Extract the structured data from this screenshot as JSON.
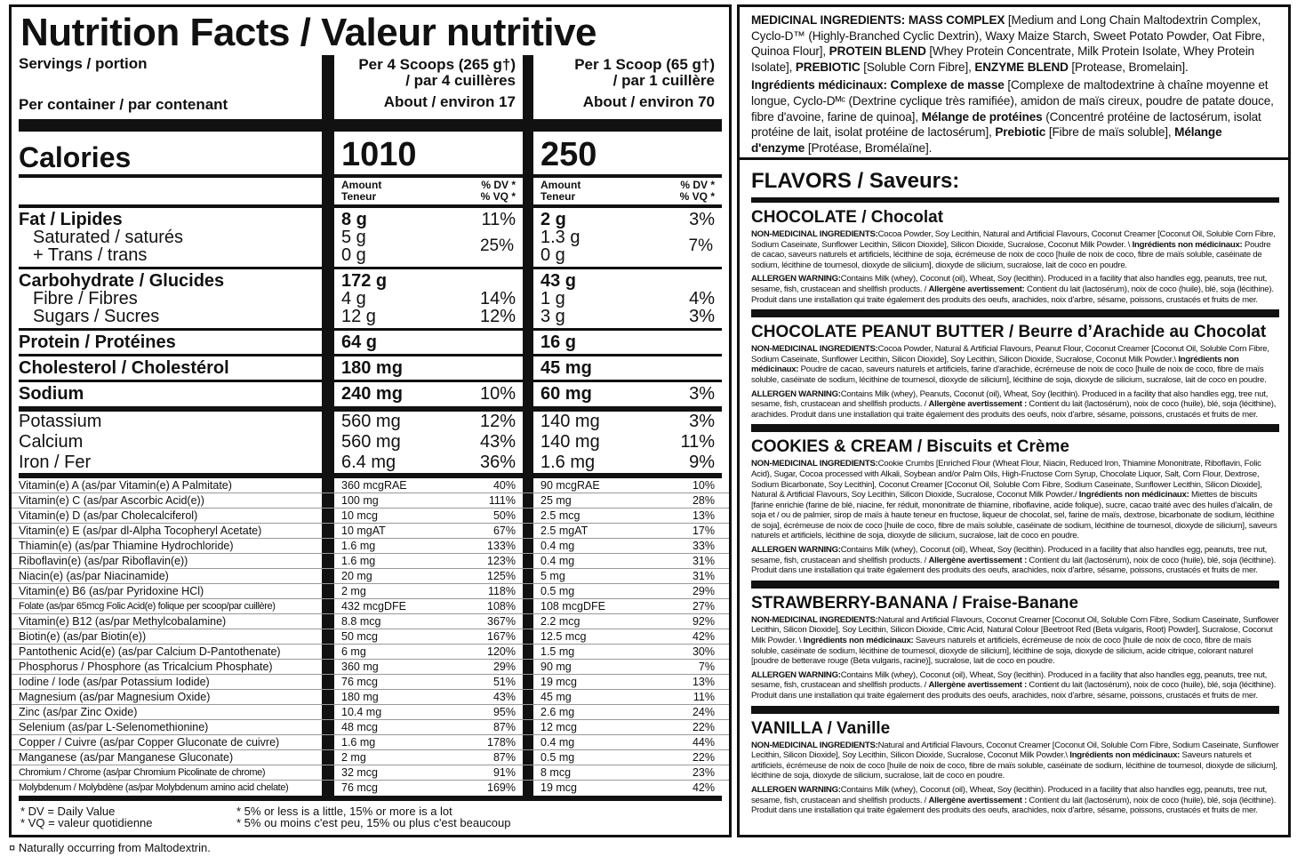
{
  "nutrition": {
    "title": "Nutrition Facts / Valeur nutritive",
    "servings_label": "Servings / portion",
    "per_container_label": "Per container / par contenant",
    "serving_a": {
      "line1": "Per 4 Scoops (265 g†)",
      "line2": "/ par 4 cuillères",
      "container": "About / environ 17"
    },
    "serving_b": {
      "line1": "Per 1 Scoop (65 g†)",
      "line2": "/ par 1 cuillère",
      "container": "About / environ 70"
    },
    "calories_label": "Calories",
    "calories_a": "1010",
    "calories_b": "250",
    "amount_label": "Amount",
    "amount_label_fr": "Teneur",
    "dv_label": "% DV *",
    "vq_label": "% VQ *",
    "fat": {
      "label": "Fat / Lipides",
      "a": "8 g",
      "a_dv": "11%",
      "b": "2 g",
      "b_dv": "3%"
    },
    "saturated": {
      "label": "Saturated / saturés",
      "a": "5 g",
      "b": "1.3 g"
    },
    "trans": {
      "label": "+ Trans / trans",
      "a": "0 g",
      "b": "0 g"
    },
    "sat_trans_dv": {
      "a": "25%",
      "b": "7%"
    },
    "carb": {
      "label": "Carbohydrate / Glucides",
      "a": "172 g",
      "b": "43 g"
    },
    "fibre": {
      "label": "Fibre / Fibres",
      "a": "4 g",
      "a_dv": "14%",
      "b": "1 g",
      "b_dv": "4%"
    },
    "sugars": {
      "label": "Sugars / Sucres",
      "a": "12 g",
      "a_dv": "12%",
      "b": "3 g",
      "b_dv": "3%"
    },
    "protein": {
      "label": "Protein / Protéines",
      "a": "64 g",
      "b": "16 g"
    },
    "cholesterol": {
      "label": "Cholesterol / Cholestérol",
      "a": "180 mg",
      "b": "45 mg"
    },
    "sodium": {
      "label": "Sodium",
      "a": "240 mg",
      "a_dv": "10%",
      "b": "60 mg",
      "b_dv": "3%"
    },
    "minerals": [
      {
        "label": "Potassium",
        "a": "560 mg",
        "a_dv": "12%",
        "b": "140 mg",
        "b_dv": "3%"
      },
      {
        "label": "Calcium",
        "a": "560 mg",
        "a_dv": "43%",
        "b": "140 mg",
        "b_dv": "11%"
      },
      {
        "label": "Iron / Fer",
        "a": "6.4 mg",
        "a_dv": "36%",
        "b": "1.6 mg",
        "b_dv": "9%"
      }
    ],
    "vitamins": [
      {
        "label": "Vitamin(e) A (as/par Vitamin(e) A Palmitate)",
        "a": "360 mcgRAE",
        "a_dv": "40%",
        "b": "90 mcgRAE",
        "b_dv": "10%"
      },
      {
        "label": "Vitamin(e) C (as/par Ascorbic Acid(e))",
        "a": "100 mg",
        "a_dv": "111%",
        "b": "25 mg",
        "b_dv": "28%"
      },
      {
        "label": "Vitamin(e) D (as/par Cholecalciferol)",
        "a": "10 mcg",
        "a_dv": "50%",
        "b": "2.5 mcg",
        "b_dv": "13%"
      },
      {
        "label": "Vitamin(e) E (as/par dl-Alpha Tocopheryl Acetate)",
        "a": "10 mgAT",
        "a_dv": "67%",
        "b": "2.5 mgAT",
        "b_dv": "17%"
      },
      {
        "label": "Thiamin(e) (as/par Thiamine Hydrochloride)",
        "a": "1.6 mg",
        "a_dv": "133%",
        "b": "0.4 mg",
        "b_dv": "33%"
      },
      {
        "label": "Riboflavin(e) (as/par Riboflavin(e))",
        "a": "1.6 mg",
        "a_dv": "123%",
        "b": "0.4 mg",
        "b_dv": "31%"
      },
      {
        "label": "Niacin(e) (as/par Niacinamide)",
        "a": "20 mg",
        "a_dv": "125%",
        "b": "5 mg",
        "b_dv": "31%"
      },
      {
        "label": "Vitamin(e) B6 (as/par Pyridoxine HCl)",
        "a": "2 mg",
        "a_dv": "118%",
        "b": "0.5 mg",
        "b_dv": "29%"
      },
      {
        "label": "Folate (as/par 65mcg Folic Acid(e) folique per scoop/par cuillère)",
        "a": "432 mcgDFE",
        "a_dv": "108%",
        "b": "108 mcgDFE",
        "b_dv": "27%"
      },
      {
        "label": "Vitamin(e) B12 (as/par Methylcobalamine)",
        "a": "8.8 mcg",
        "a_dv": "367%",
        "b": "2.2 mcg",
        "b_dv": "92%"
      },
      {
        "label": "Biotin(e) (as/par Biotin(e))",
        "a": "50 mcg",
        "a_dv": "167%",
        "b": "12.5 mcg",
        "b_dv": "42%"
      },
      {
        "label": "Pantothenic Acid(e) (as/par Calcium D-Pantothenate)",
        "a": "6 mg",
        "a_dv": "120%",
        "b": "1.5 mg",
        "b_dv": "30%"
      },
      {
        "label": "Phosphorus / Phosphore (as Tricalcium Phosphate)",
        "a": "360 mg",
        "a_dv": "29%",
        "b": "90 mg",
        "b_dv": "7%"
      },
      {
        "label": "Iodine / Iode (as/par Potassium Iodide)",
        "a": "76 mcg",
        "a_dv": "51%",
        "b": "19 mcg",
        "b_dv": "13%"
      },
      {
        "label": "Magnesium (as/par Magnesium Oxide)",
        "a": "180 mg",
        "a_dv": "43%",
        "b": "45 mg",
        "b_dv": "11%"
      },
      {
        "label": "Zinc (as/par Zinc Oxide)",
        "a": "10.4 mg",
        "a_dv": "95%",
        "b": "2.6 mg",
        "b_dv": "24%"
      },
      {
        "label": "Selenium (as/par L-Selenomethionine)",
        "a": "48 mcg",
        "a_dv": "87%",
        "b": "12 mcg",
        "b_dv": "22%"
      },
      {
        "label": "Copper / Cuivre (as/par Copper Gluconate de cuivre)",
        "a": "1.6 mg",
        "a_dv": "178%",
        "b": "0.4 mg",
        "b_dv": "44%"
      },
      {
        "label": "Manganese (as/par Manganese Gluconate)",
        "a": "2 mg",
        "a_dv": "87%",
        "b": "0.5 mg",
        "b_dv": "22%"
      },
      {
        "label": "Chromium / Chrome (as/par Chromium Picolinate de chrome)",
        "a": "32 mcg",
        "a_dv": "91%",
        "b": "8 mcg",
        "b_dv": "23%"
      },
      {
        "label": "Molybdenum / Molybdène (as/par Molybdenum amino acid chelate)",
        "a": "76 mcg",
        "a_dv": "169%",
        "b": "19 mcg",
        "b_dv": "42%"
      }
    ],
    "footer": {
      "dv": "* DV = Daily Value",
      "vq": "* VQ = valeur quotidienne",
      "note_en": "* 5% or less is a little, 15% or more is a lot",
      "note_fr": "* 5% ou moins c'est peu, 15% ou plus c'est beaucoup"
    }
  },
  "footnote": "¤ Naturally occurring from Maltodextrin.",
  "medicinal": {
    "en": [
      {
        "t": "MEDICINAL INGREDIENTS: ",
        "b": true
      },
      {
        "t": "MASS COMPLEX",
        "b": true
      },
      {
        "t": " [Medium and Long Chain Maltodextrin Complex, Cyclo-D™ (Highly-Branched Cyclic Dextrin), Waxy Maize Starch, Sweet Potato Powder, Oat Fibre, Quinoa Flour], "
      },
      {
        "t": "PROTEIN BLEND",
        "b": true
      },
      {
        "t": " [Whey Protein Concentrate, Milk Protein Isolate, Whey Protein Isolate], "
      },
      {
        "t": "PREBIOTIC",
        "b": true
      },
      {
        "t": " [Soluble Corn Fibre], "
      },
      {
        "t": "ENZYME BLEND",
        "b": true
      },
      {
        "t": " [Protease, Bromelain]."
      }
    ],
    "fr": [
      {
        "t": "Ingrédients médicinaux: ",
        "b": true
      },
      {
        "t": "Complexe de masse",
        "b": true
      },
      {
        "t": " [Complexe de maltodextrine à chaîne moyenne et longue, Cyclo-Dᴹᶜ (Dextrine cyclique très ramifiée), amidon de maïs cireux, poudre de patate douce, fibre d'avoine, farine de quinoa], "
      },
      {
        "t": "Mélange de protéines",
        "b": true
      },
      {
        "t": " (Concentré protéine de lactosérum, isolat protéine de lait, isolat protéine de lactosérum], "
      },
      {
        "t": "Prebiotic",
        "b": true
      },
      {
        "t": " [Fibre de maïs soluble], "
      },
      {
        "t": "Mélange d'enzyme",
        "b": true
      },
      {
        "t": " [Protéase, Bromélaïne]."
      }
    ]
  },
  "flavors": {
    "heading": "FLAVORS / Saveurs:",
    "nonmed_label": "NON-MEDICINAL INGREDIENTS:",
    "allergen_label": "ALLERGEN WARNING:",
    "items": [
      {
        "title": "CHOCOLATE / Chocolat",
        "nonmed": "Cocoa Powder, Soy Lecithin, Natural and Artificial Flavours, Coconut Creamer [Coconut Oil, Soluble Corn Fibre, Sodium Caseinate, Sunflower Lecithin, Silicon Dioxide], Silicon Dioxide, Sucralose, Coconut Milk Powder. \\ ",
        "fr_label": "Ingrédients non médicinaux:",
        "fr": " Poudre de cacao, saveurs naturels et artificiels, lécithine de soja, écrémeuse de noix de coco [huile de noix de coco, fibre de maïs soluble, caséinate de sodium, lécithine de tournesol, dioxyde de silicium], dioxyde de silicium, sucralose, lait de coco en poudre.",
        "allergen": "Contains Milk (whey), Coconut (oil), Wheat, Soy (lecithin). Produced in a facility that also handles egg, peanuts, tree nut, sesame, fish, crustacean and shellfish products. / ",
        "allergen_fr_label": "Allergène avertissement:",
        "allergen_fr": " Contient du lait (lactosérum), noix de coco (huile), blé, soja (lécithine). Produit dans une installation qui traite également des produits des oeufs, arachides, noix d'arbre, sésame, poissons, crustacés et fruits de mer."
      },
      {
        "title": "CHOCOLATE PEANUT BUTTER / Beurre d’Arachide au Chocolat",
        "nonmed": "Cocoa Powder, Natural & Artificial Flavours, Peanut Flour, Coconut Creamer [Coconut Oil, Soluble Corn Fibre, Sodium Caseinate, Sunflower Lecithin, Silicon Dioxide], Soy Lecithin, Silicon Dioxide, Sucralose, Coconut Milk Powder.\\ ",
        "fr_label": "Ingrédients non médicinaux:",
        "fr": " Poudre de cacao, saveurs naturels et artificiels, farine d'arachide, écrémeuse de noix de coco [huile de noix de coco, fibre de maïs soluble, caséinate de sodium, lécithine de tournesol, dioxyde de silicium], lécithine de soja, dioxyde de silicium, sucralose, lait de coco en poudre.",
        "allergen": "Contains Milk (whey), Peanuts, Coconut (oil), Wheat, Soy (lecithin). Produced in a facility that also handles egg, tree nut, sesame, fish, crustacean and shellfish products. / ",
        "allergen_fr_label": "Allergène avertissement :",
        "allergen_fr": " Contient du lait (lactosérum), noix de coco (huile), blé, soja (lécithine), arachides. Produit dans une installation qui traite également des produits des oeufs, noix d'arbre, sésame, poissons, crustacés et fruits de mer."
      },
      {
        "title": "COOKIES & CREAM / Biscuits et Crème",
        "nonmed": "Cookie Crumbs [Enriched Flour (Wheat Flour, Niacin, Reduced Iron, Thiamine Mononitrate, Riboflavin, Folic Acid), Sugar, Cocoa processed with Alkali, Soybean and/or Palm Oils, High-Fructose Corn Syrup, Chocolate Liquor, Salt, Corn Flour, Dextrose, Sodium Bicarbonate, Soy Lecithin], Coconut Creamer [Coconut Oil, Soluble Corn Fibre, Sodium Caseinate, Sunflower Lecithin, Silicon Dioxide], Natural & Artificial Flavours, Soy Lecithin, Silicon Dioxide, Sucralose, Coconut Milk Powder./ ",
        "fr_label": "Ingrédients non médicinaux:",
        "fr": " Miettes de biscuits [farine enrichie (farine de blé, niacine, fer réduit, mononitrate de thiamine, riboflavine, acide folique), sucre, cacao traité avec des huiles d'alcalin, de soja et / ou de palmier, sirop de maïs à haute teneur en fructose, liqueur de chocolat, sel, farine de maïs, dextrose, bicarbonate de sodium, lécithine de soja], écrémeuse de noix de coco [huile de coco, fibre de maïs soluble, caséinate de sodium, lécithine de tournesol, dioxyde de silicium], saveurs naturels et artificiels, lécithine de soja, dioxyde de silicium, sucralose, lait de coco en poudre.",
        "allergen": "Contains Milk (whey), Coconut (oil), Wheat, Soy (lecithin). Produced in a facility that also handles egg, peanuts, tree nut, sesame, fish, crustacean and shellfish products. / ",
        "allergen_fr_label": "Allergène avertissement :",
        "allergen_fr": " Contient du lait (lactosérum), noix de coco (huile), blé, soja (lécithine). Produit dans une installation qui traite également des produits des oeufs, arachides, noix d'arbre, sésame, poissons, crustacés et fruits de mer."
      },
      {
        "title": "STRAWBERRY-BANANA / Fraise-Banane",
        "nonmed": "Natural and Artificial Flavours, Coconut Creamer [Coconut Oil, Soluble Corn Fibre, Sodium Caseinate, Sunflower Lecithin, Silicon Dioxide], Soy Lecithin, Silicon Dioxide, Citric Acid, Natural Colour [Beetroot Red (Beta vulgaris, Root) Powder], Sucralose, Coconut Milk Powder. \\ ",
        "fr_label": "Ingrédients non médicinaux:",
        "fr": " Saveurs naturels et artificiels, écrémeuse de noix de coco [huile de noix de coco, fibre de maïs soluble, caséinate de sodium, lécithine de tournesol, dioxyde de silicium], lécithine de soja, dioxyde de silicium, acide citrique, colorant naturel [poudre de betterave rouge (Beta vulgaris, racine)], sucralose, lait de coco en poudre.",
        "allergen": "Contains Milk (whey), Coconut (oil), Wheat, Soy (lecithin). Produced in a facility that also handles egg, peanuts, tree nut, sesame, fish, crustacean and shellfish products. / ",
        "allergen_fr_label": "Allergène avertissement :",
        "allergen_fr": " Contient du lait (lactosérum), noix de coco (huile), blé, soja (lécithine). Produit dans une installation qui traite également des produits des oeufs, arachides, noix d'arbre, sésame, poissons, crustacés et fruits de mer."
      },
      {
        "title": "VANILLA / Vanille",
        "nonmed": "Natural and Artificial Flavours, Coconut Creamer [Coconut Oil, Soluble Corn Fibre, Sodium Caseinate, Sunflower Lecithin, Silicon Dioxide], Soy Lecithin, Silicon Dioxide, Sucralose, Coconut Milk Powder.\\ ",
        "fr_label": "Ingrédients non médicinaux:",
        "fr": " Saveurs naturels et artificiels, écrémeuse de noix de coco [huile de noix de coco, fibre de maïs soluble, caséinate de sodium, lécithine de tournesol, dioxyde de silicium], lécithine de soja, dioxyde de silicium, sucralose, lait de coco en poudre.",
        "allergen": "Contains Milk (whey), Coconut (oil), Wheat, Soy (lecithin). Produced in a facility that also handles egg, peanuts, tree nut, sesame, fish, crustacean and shellfish products. / ",
        "allergen_fr_label": "Allergène avertissement :",
        "allergen_fr": " Contient du lait (lactosérum), noix de coco (huile), blé, soja (lécithine). Produit dans une installation qui traite également des produits des oeufs, arachides, noix d'arbre, sésame, poissons, crustacés et fruits de mer."
      }
    ]
  }
}
